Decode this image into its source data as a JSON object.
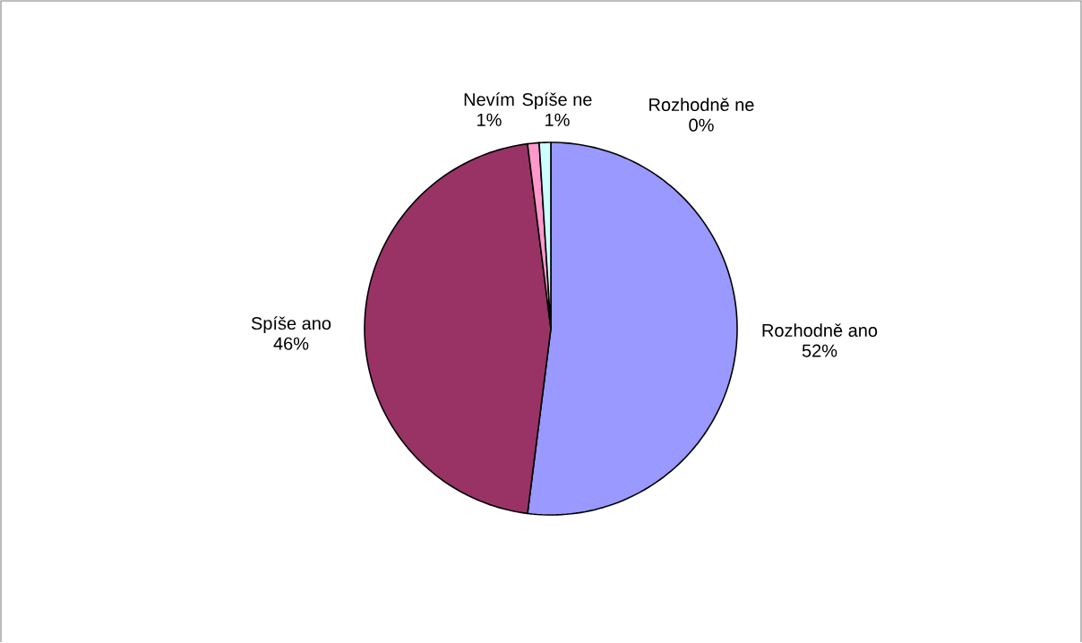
{
  "chart_data": {
    "type": "pie",
    "categories": [
      "Rozhodně ano",
      "Spíše ano",
      "Nevím",
      "Spíše ne",
      "Rozhodně ne"
    ],
    "values": [
      52,
      46,
      1,
      1,
      0
    ],
    "value_labels": [
      "52%",
      "46%",
      "1%",
      "1%",
      "0%"
    ],
    "colors": [
      "#9999ff",
      "#993366",
      "#ff99cc",
      "#ccffff",
      "#ffffcc"
    ]
  }
}
